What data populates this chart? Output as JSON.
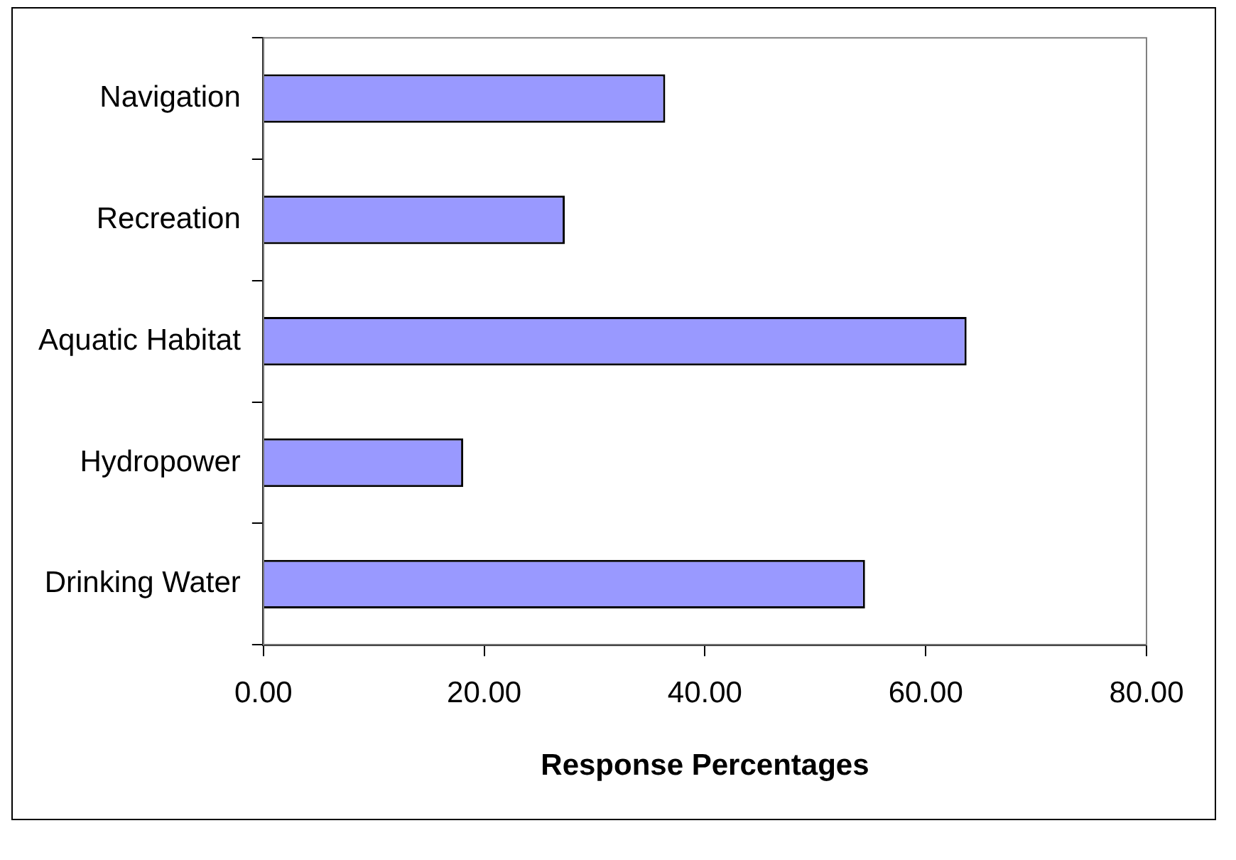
{
  "chart_data": {
    "type": "bar",
    "orientation": "horizontal",
    "xlabel": "Response Percentages",
    "categories": [
      "Navigation",
      "Recreation",
      "Aquatic Habitat",
      "Hydropower",
      "Drinking Water"
    ],
    "values": [
      36.4,
      27.3,
      63.7,
      18.1,
      54.5
    ],
    "color": "#9999ff",
    "xlim": [
      0,
      80
    ],
    "xticks": [
      {
        "value": 0,
        "label": "0.00"
      },
      {
        "value": 20,
        "label": "20.00"
      },
      {
        "value": 40,
        "label": "40.00"
      },
      {
        "value": 60,
        "label": "60.00"
      },
      {
        "value": 80,
        "label": "80.00"
      }
    ],
    "grid": false,
    "legend": false
  }
}
